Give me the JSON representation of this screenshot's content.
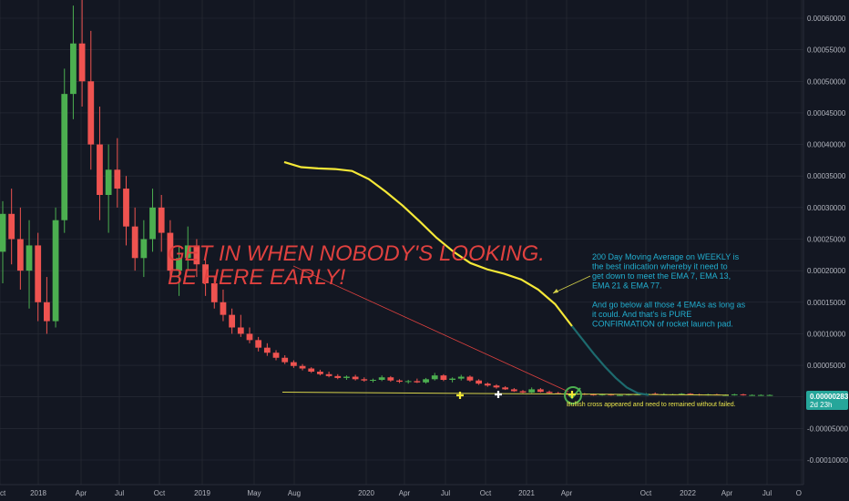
{
  "chart_data": {
    "type": "candlestick",
    "x_ticks": [
      "ct",
      "2018",
      "Apr",
      "Jul",
      "Oct",
      "2019",
      "May",
      "Aug",
      "2020",
      "Apr",
      "Jul",
      "Oct",
      "2021",
      "Apr",
      "Oct",
      "2022",
      "Apr",
      "Jul",
      "O"
    ],
    "y_ticks": [
      "0.00060000",
      "0.00055000",
      "0.00050000",
      "0.00045000",
      "0.00040000",
      "0.00035000",
      "0.00030000",
      "0.00025000",
      "0.00020000",
      "0.00015000",
      "0.00010000",
      "0.00005000",
      "0.00000000",
      "-0.00005000",
      "-0.00010000"
    ],
    "ylim": [
      -0.000124,
      0.000638
    ],
    "last_price": {
      "value": "0.00000283",
      "time": "2d 23h"
    },
    "candles": [
      [
        0.00023,
        0.00031,
        0.00018,
        0.00029
      ],
      [
        0.00029,
        0.00033,
        0.00021,
        0.00025
      ],
      [
        0.00025,
        0.0003,
        0.00017,
        0.0002
      ],
      [
        0.0002,
        0.00028,
        0.00014,
        0.00024
      ],
      [
        0.00024,
        0.00026,
        0.00012,
        0.00015
      ],
      [
        0.00015,
        0.00019,
        0.0001,
        0.00012
      ],
      [
        0.00012,
        0.0003,
        0.00011,
        0.00028
      ],
      [
        0.00028,
        0.00052,
        0.00026,
        0.00048
      ],
      [
        0.00048,
        0.00062,
        0.00044,
        0.00056
      ],
      [
        0.00056,
        0.00063,
        0.00046,
        0.0005
      ],
      [
        0.0005,
        0.00058,
        0.00036,
        0.0004
      ],
      [
        0.0004,
        0.00046,
        0.00028,
        0.00032
      ],
      [
        0.00032,
        0.0004,
        0.00026,
        0.00036
      ],
      [
        0.00036,
        0.00041,
        0.0003,
        0.00033
      ],
      [
        0.00033,
        0.00035,
        0.00024,
        0.00027
      ],
      [
        0.00027,
        0.0003,
        0.0002,
        0.00022
      ],
      [
        0.00022,
        0.00028,
        0.00019,
        0.00025
      ],
      [
        0.00025,
        0.00033,
        0.00023,
        0.0003
      ],
      [
        0.0003,
        0.00032,
        0.00023,
        0.00026
      ],
      [
        0.00026,
        0.00028,
        0.00018,
        0.0002
      ],
      [
        0.0002,
        0.00024,
        0.00016,
        0.00022
      ],
      [
        0.00022,
        0.00027,
        0.0002,
        0.00024
      ],
      [
        0.00024,
        0.00025,
        0.00019,
        0.00021
      ],
      [
        0.00021,
        0.00022,
        0.00016,
        0.00018
      ],
      [
        0.00018,
        0.00019,
        0.00014,
        0.00015
      ],
      [
        0.00015,
        0.00017,
        0.00012,
        0.00013
      ],
      [
        0.00013,
        0.00014,
        0.0001,
        0.00011
      ],
      [
        0.00011,
        0.00013,
        9.5e-05,
        0.0001
      ],
      [
        0.0001,
        0.00011,
        8.5e-05,
        9e-05
      ],
      [
        9e-05,
        9.5e-05,
        7.2e-05,
        7.8e-05
      ],
      [
        7.8e-05,
        8.5e-05,
        6.5e-05,
        7e-05
      ],
      [
        7e-05,
        7.4e-05,
        5.8e-05,
        6.2e-05
      ],
      [
        6.2e-05,
        6.6e-05,
        5.2e-05,
        5.5e-05
      ],
      [
        5.5e-05,
        5.8e-05,
        4.6e-05,
        4.9e-05
      ],
      [
        4.9e-05,
        5.2e-05,
        4.2e-05,
        4.5e-05
      ],
      [
        4.5e-05,
        4.7e-05,
        3.8e-05,
        4e-05
      ],
      [
        4e-05,
        4.3e-05,
        3.4e-05,
        3.6e-05
      ],
      [
        3.6e-05,
        4e-05,
        3.1e-05,
        3.3e-05
      ],
      [
        3.3e-05,
        3.6e-05,
        2.8e-05,
        3e-05
      ],
      [
        3e-05,
        3.4e-05,
        2.7e-05,
        3.2e-05
      ],
      [
        3.2e-05,
        3.5e-05,
        2.6e-05,
        2.8e-05
      ],
      [
        2.8e-05,
        3.1e-05,
        2.4e-05,
        2.6e-05
      ],
      [
        2.6e-05,
        2.9e-05,
        2.3e-05,
        2.7e-05
      ],
      [
        2.7e-05,
        3.4e-05,
        2.5e-05,
        3.1e-05
      ],
      [
        3.1e-05,
        3.3e-05,
        2.4e-05,
        2.6e-05
      ],
      [
        2.6e-05,
        2.8e-05,
        2.2e-05,
        2.4e-05
      ],
      [
        2.4e-05,
        2.7e-05,
        2.1e-05,
        2.5e-05
      ],
      [
        2.5e-05,
        2.9e-05,
        2.2e-05,
        2.3e-05
      ],
      [
        2.3e-05,
        3e-05,
        2.1e-05,
        2.8e-05
      ],
      [
        2.8e-05,
        3.8e-05,
        2.6e-05,
        3.4e-05
      ],
      [
        3.4e-05,
        3.6e-05,
        2.5e-05,
        2.7e-05
      ],
      [
        2.7e-05,
        3.1e-05,
        2.3e-05,
        2.9e-05
      ],
      [
        2.9e-05,
        3.5e-05,
        2.6e-05,
        3.2e-05
      ],
      [
        3.2e-05,
        3.4e-05,
        2.4e-05,
        2.6e-05
      ],
      [
        2.6e-05,
        2.8e-05,
        1.9e-05,
        2.1e-05
      ],
      [
        2.1e-05,
        2.3e-05,
        1.6e-05,
        1.8e-05
      ],
      [
        1.8e-05,
        2e-05,
        1.3e-05,
        1.5e-05
      ],
      [
        1.5e-05,
        1.7e-05,
        1.1e-05,
        1.2e-05
      ],
      [
        1.2e-05,
        1.4e-05,
        8e-06,
        9e-06
      ],
      [
        9e-06,
        1.1e-05,
        6e-06,
        7e-06
      ],
      [
        7e-06,
        1.5e-05,
        6e-06,
        1.2e-05
      ],
      [
        1.2e-05,
        1.4e-05,
        7e-06,
        8e-06
      ],
      [
        8e-06,
        1e-05,
        5e-06,
        6e-06
      ],
      [
        6e-06,
        8e-06,
        4e-06,
        5e-06
      ],
      [
        5e-06,
        7e-06,
        3e-06,
        4e-06
      ],
      [
        4e-06,
        6e-06,
        3e-06,
        5e-06
      ],
      [
        5e-06,
        6e-06,
        3e-06,
        4e-06
      ],
      [
        4e-06,
        5e-06,
        2e-06,
        3e-06
      ],
      [
        3e-06,
        5e-06,
        2e-06,
        4e-06
      ],
      [
        4e-06,
        5e-06,
        2e-06,
        3e-06
      ],
      [
        3e-06,
        4e-06,
        2e-06,
        3e-06
      ],
      [
        3e-06,
        5e-06,
        2e-06,
        4e-06
      ],
      [
        4e-06,
        5e-06,
        3e-06,
        4e-06
      ],
      [
        4e-06,
        6e-06,
        3e-06,
        5e-06
      ],
      [
        5e-06,
        7e-06,
        3e-06,
        4e-06
      ],
      [
        4e-06,
        6e-06,
        3e-06,
        4e-06
      ],
      [
        4e-06,
        5e-06,
        3e-06,
        4e-06
      ],
      [
        4e-06,
        6e-06,
        3e-06,
        5e-06
      ],
      [
        5e-06,
        6e-06,
        3e-06,
        4e-06
      ],
      [
        4e-06,
        5e-06,
        2e-06,
        3e-06
      ],
      [
        3e-06,
        5e-06,
        2e-06,
        4e-06
      ],
      [
        4e-06,
        5e-06,
        3e-06,
        3e-06
      ],
      [
        3e-06,
        4e-06,
        2e-06,
        3e-06
      ],
      [
        3e-06,
        5e-06,
        2e-06,
        4e-06
      ],
      [
        4e-06,
        5e-06,
        2e-06,
        3e-06
      ],
      [
        3e-06,
        4e-06,
        2e-06,
        3e-06
      ],
      [
        3e-06,
        4e-06,
        2e-06,
        3e-06
      ],
      [
        3e-06,
        4e-06,
        2e-06,
        3e-06
      ]
    ],
    "ema_line": [
      [
        0.000372
      ],
      [
        0.000364
      ],
      [
        0.000362
      ],
      [
        0.000361
      ],
      [
        0.000358
      ],
      [
        0.000345
      ],
      [
        0.000325
      ],
      [
        0.000303
      ],
      [
        0.000278
      ],
      [
        0.000252
      ],
      [
        0.00023
      ],
      [
        0.000212
      ],
      [
        0.000202
      ],
      [
        0.000195
      ],
      [
        0.000186
      ],
      [
        0.00017
      ],
      [
        0.000147
      ],
      [
        0.000112
      ]
    ],
    "ema_line_tail": [
      [
        0.000112
      ],
      [
        9e-05
      ],
      [
        6.8e-05
      ],
      [
        4.8e-05
      ],
      [
        3e-05
      ],
      [
        1.5e-05
      ],
      [
        6e-06
      ],
      [
        3e-06
      ]
    ],
    "support_line": [
      7.5e-06,
      2.8e-06
    ]
  },
  "annotations": {
    "headline_1": "GET IN WHEN NOBODY'S LOOKING.",
    "headline_2": "BE HERE EARLY!",
    "ma_note": [
      "200 Day Moving Average on WEEKLY is",
      "the best indication whereby it need to",
      "get down to meet the EMA 7, EMA 13,",
      "EMA 21 & EMA 77.",
      "",
      "And go below all those 4 EMAs as long as",
      "it could. And that's is PURE",
      "CONFIRMATION of rocket launch pad."
    ],
    "cross_note": "Bullish cross appeared and need to remained without failed."
  },
  "colors": {
    "background": "#131722",
    "grid": "#2a2e39",
    "up": "#26a69a",
    "up_bright": "#4caf50",
    "down": "#ef5350",
    "ema_yellow": "#f5e837",
    "ema_teal": "#1d6a6e",
    "support": "#d6d24a",
    "headline": "#e0413f",
    "note": "#22aecf",
    "price_tag": "#26a69a"
  }
}
